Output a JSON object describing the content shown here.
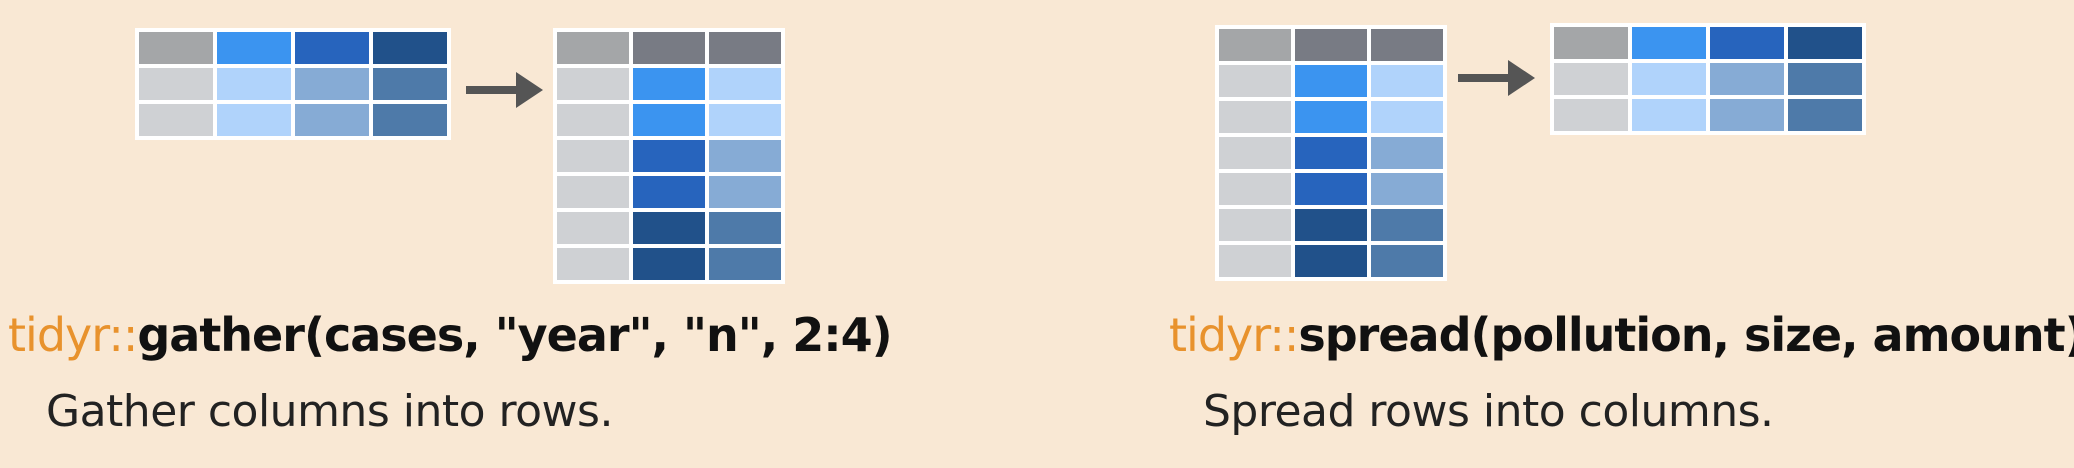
{
  "colors": {
    "background": "#f9e8d4",
    "grid_line": "#ffffff",
    "gray_dark": "#a4a6a8",
    "gray_slate": "#787b84",
    "gray_light": "#cfd1d4",
    "blue_1": "#3b94f0",
    "blue_2": "#2764bd",
    "blue_3": "#21518a",
    "blue_1_light": "#b0d3fb",
    "blue_2_light": "#86abd5",
    "blue_3_light": "#4e7aa9",
    "arrow": "#555555",
    "package": "#e8922d"
  },
  "gather": {
    "package": "tidyr::",
    "function": "gather",
    "args": "(cases, \"year\", \"n\", 2:4)",
    "description": "Gather columns into rows.",
    "input_table": [
      [
        "gray_dark",
        "blue_1",
        "blue_2",
        "blue_3"
      ],
      [
        "gray_light",
        "blue_1_light",
        "blue_2_light",
        "blue_3_light"
      ],
      [
        "gray_light",
        "blue_1_light",
        "blue_2_light",
        "blue_3_light"
      ]
    ],
    "output_table": [
      [
        "gray_dark",
        "gray_slate",
        "gray_slate"
      ],
      [
        "gray_light",
        "blue_1",
        "blue_1_light"
      ],
      [
        "gray_light",
        "blue_1",
        "blue_1_light"
      ],
      [
        "gray_light",
        "blue_2",
        "blue_2_light"
      ],
      [
        "gray_light",
        "blue_2",
        "blue_2_light"
      ],
      [
        "gray_light",
        "blue_3",
        "blue_3_light"
      ],
      [
        "gray_light",
        "blue_3",
        "blue_3_light"
      ]
    ],
    "arrow_icon": "right-arrow-icon"
  },
  "spread": {
    "package": "tidyr::",
    "function": "spread",
    "args": "(pollution, size, amount)",
    "description": "Spread rows into columns.",
    "input_table": [
      [
        "gray_dark",
        "gray_slate",
        "gray_slate"
      ],
      [
        "gray_light",
        "blue_1",
        "blue_1_light"
      ],
      [
        "gray_light",
        "blue_1",
        "blue_1_light"
      ],
      [
        "gray_light",
        "blue_2",
        "blue_2_light"
      ],
      [
        "gray_light",
        "blue_2",
        "blue_2_light"
      ],
      [
        "gray_light",
        "blue_3",
        "blue_3_light"
      ],
      [
        "gray_light",
        "blue_3",
        "blue_3_light"
      ]
    ],
    "output_table": [
      [
        "gray_dark",
        "blue_1",
        "blue_2",
        "blue_3"
      ],
      [
        "gray_light",
        "blue_1_light",
        "blue_2_light",
        "blue_3_light"
      ],
      [
        "gray_light",
        "blue_1_light",
        "blue_2_light",
        "blue_3_light"
      ]
    ],
    "arrow_icon": "right-arrow-icon"
  }
}
